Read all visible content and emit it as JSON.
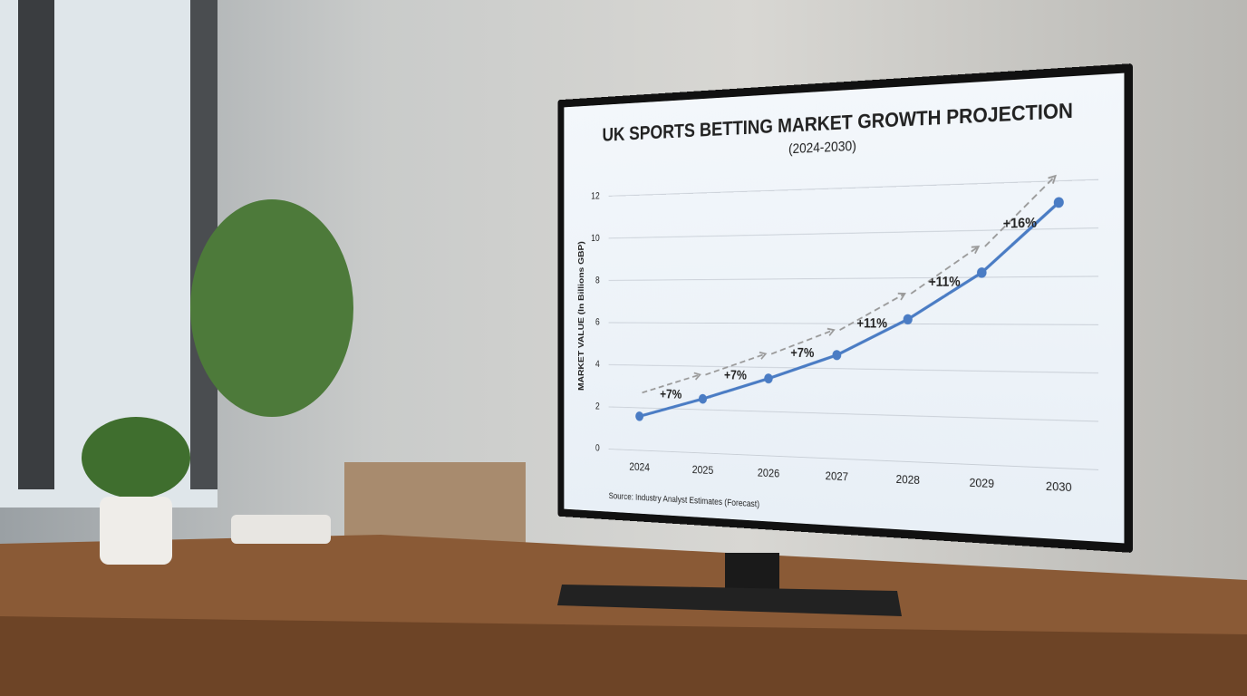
{
  "chart_data": {
    "type": "line",
    "title": "UK SPORTS BETTING MARKET GROWTH PROJECTION",
    "subtitle": "(2024-2030)",
    "y_label": "MARKET VALUE (In Billions GBP)",
    "source": "Source: Industry Analyst Estimates (Forecast)",
    "categories": [
      "2024",
      "2025",
      "2026",
      "2027",
      "2028",
      "2029",
      "2030"
    ],
    "series": [
      {
        "name": "Market Value",
        "color": "#4a7cc4",
        "values": [
          1.6,
          2.5,
          3.5,
          4.6,
          6.2,
          8.2,
          11.1
        ]
      }
    ],
    "annotations": [
      "+7%",
      "+7%",
      "+7%",
      "+11%",
      "+11%",
      "+16%"
    ],
    "ylim": [
      0,
      13
    ],
    "yticks": [
      0,
      2,
      4,
      6,
      8,
      10,
      12
    ],
    "grid": true
  }
}
